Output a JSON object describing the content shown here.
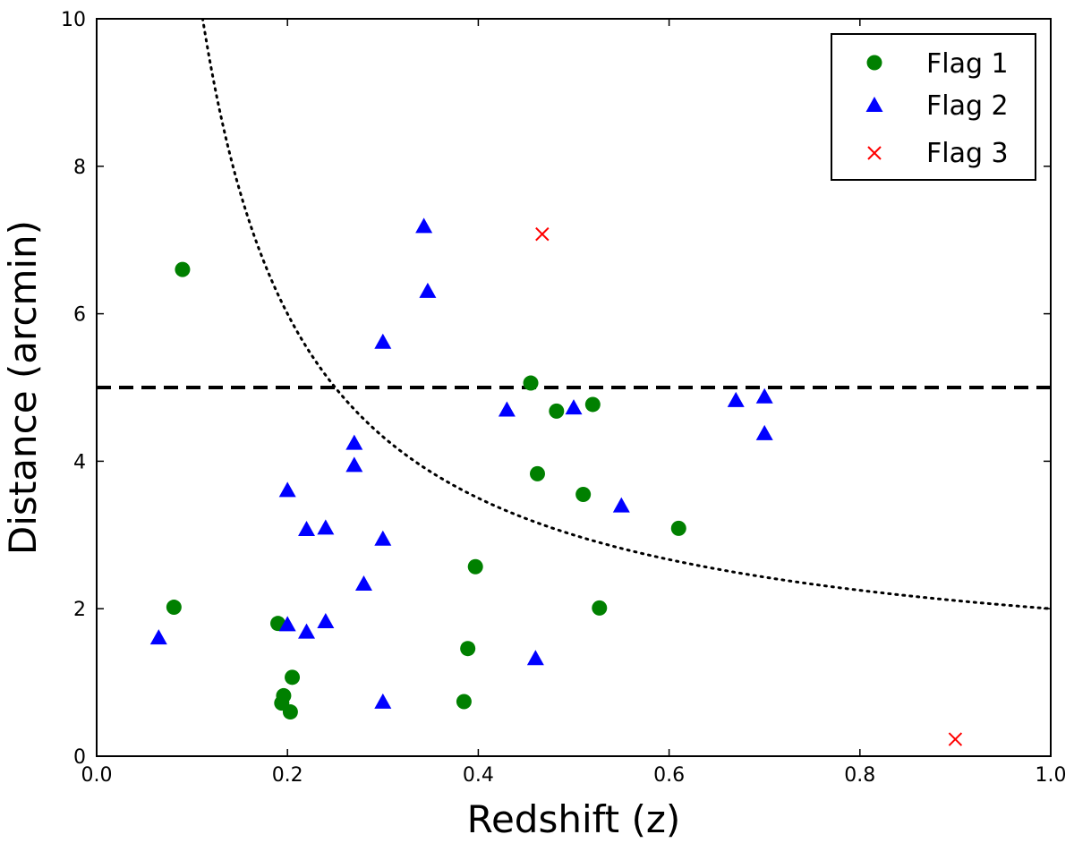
{
  "chart_data": {
    "type": "scatter",
    "xlabel": "Redshift (z)",
    "ylabel": "Distance (arcmin)",
    "xlim": [
      0.0,
      1.0
    ],
    "ylim": [
      0,
      10
    ],
    "xticks": [
      "0.0",
      "0.2",
      "0.4",
      "0.6",
      "0.8",
      "1.0"
    ],
    "yticks": [
      "0",
      "2",
      "4",
      "6",
      "8",
      "10"
    ],
    "legend_position": "top-right",
    "series": [
      {
        "name": "Flag 1",
        "marker": "circle",
        "color": "#008000",
        "points": [
          [
            0.09,
            6.6
          ],
          [
            0.081,
            2.02
          ],
          [
            0.19,
            1.8
          ],
          [
            0.196,
            0.82
          ],
          [
            0.194,
            0.72
          ],
          [
            0.203,
            0.6
          ],
          [
            0.205,
            1.07
          ],
          [
            0.397,
            2.57
          ],
          [
            0.389,
            1.46
          ],
          [
            0.385,
            0.74
          ],
          [
            0.455,
            5.06
          ],
          [
            0.462,
            3.83
          ],
          [
            0.482,
            4.68
          ],
          [
            0.51,
            3.55
          ],
          [
            0.52,
            4.77
          ],
          [
            0.527,
            2.01
          ],
          [
            0.61,
            3.09
          ]
        ]
      },
      {
        "name": "Flag 2",
        "marker": "triangle",
        "color": "#0000ff",
        "points": [
          [
            0.065,
            1.6
          ],
          [
            0.2,
            3.6
          ],
          [
            0.2,
            1.78
          ],
          [
            0.22,
            3.07
          ],
          [
            0.22,
            1.68
          ],
          [
            0.24,
            3.09
          ],
          [
            0.24,
            1.82
          ],
          [
            0.27,
            4.24
          ],
          [
            0.27,
            3.94
          ],
          [
            0.28,
            2.33
          ],
          [
            0.3,
            5.61
          ],
          [
            0.3,
            2.94
          ],
          [
            0.3,
            0.73
          ],
          [
            0.343,
            7.18
          ],
          [
            0.347,
            6.3
          ],
          [
            0.43,
            4.69
          ],
          [
            0.46,
            1.32
          ],
          [
            0.5,
            4.72
          ],
          [
            0.55,
            3.39
          ],
          [
            0.67,
            4.82
          ],
          [
            0.7,
            4.87
          ],
          [
            0.7,
            4.37
          ]
        ]
      },
      {
        "name": "Flag 3",
        "marker": "x",
        "color": "#ff0000",
        "points": [
          [
            0.467,
            7.08
          ],
          [
            0.9,
            0.23
          ]
        ]
      }
    ],
    "reference_lines": [
      {
        "name": "dashed-horizontal-line",
        "style": "dashed",
        "y": 5
      },
      {
        "name": "dotted-curve",
        "style": "dotted",
        "formula": "y = 1 + 1/z",
        "z_start": 0.09
      }
    ]
  }
}
